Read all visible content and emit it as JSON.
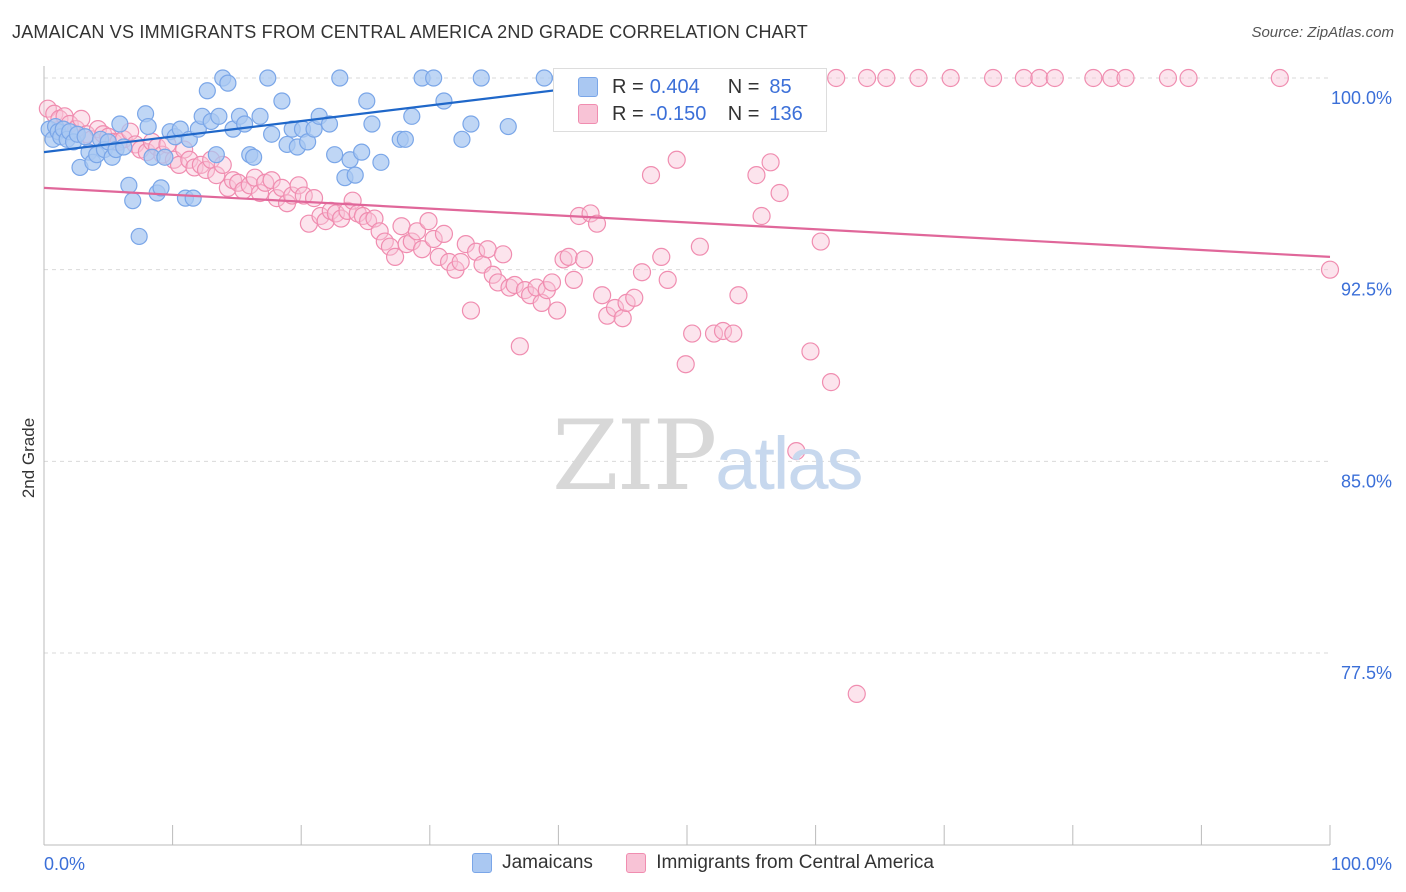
{
  "title": "JAMAICAN VS IMMIGRANTS FROM CENTRAL AMERICA 2ND GRADE CORRELATION CHART",
  "source": "Source: ZipAtlas.com",
  "watermark": {
    "zip": "ZIP",
    "atlas": "atlas"
  },
  "colors": {
    "blue": "#7aa6e8",
    "blue_fill": "#aac8f2",
    "blue_line": "#1f67c9",
    "pink": "#f08db0",
    "pink_fill": "#f8c3d6",
    "pink_line": "#e0679a",
    "axis_label": "#3b6fd8",
    "grid": "#d9d9d9"
  },
  "stats": {
    "rows": [
      {
        "r_label": "R =",
        "r_value": " 0.404",
        "n_label": "N =",
        "n_value": "85"
      },
      {
        "r_label": "R =",
        "r_value": "-0.150",
        "n_label": "N =",
        "n_value": "136"
      }
    ]
  },
  "legend": {
    "series1": "Jamaicans",
    "series2": "Immigrants from Central America"
  },
  "chart_data": {
    "type": "scatter",
    "title": "JAMAICAN VS IMMIGRANTS FROM CENTRAL AMERICA 2ND GRADE CORRELATION CHART",
    "xlabel": "",
    "ylabel": "2nd Grade",
    "xlim": [
      0,
      100
    ],
    "ylim": [
      70.5,
      101.5
    ],
    "x_tick_labels": [
      "0.0%",
      "100.0%"
    ],
    "y_ticks": [
      100.0,
      92.5,
      85.0,
      77.5
    ],
    "y_tick_labels": [
      "100.0%",
      "92.5%",
      "85.0%",
      "77.5%"
    ],
    "grid": true,
    "legend_position": "bottom",
    "series": [
      {
        "name": "Jamaicans",
        "color": "#7aa6e8",
        "trend": {
          "x": [
            0,
            46
          ],
          "y": [
            97.1,
            99.9
          ]
        },
        "points": [
          [
            0.4,
            98.0
          ],
          [
            0.7,
            97.6
          ],
          [
            0.9,
            98.1
          ],
          [
            1.1,
            97.9
          ],
          [
            1.3,
            97.7
          ],
          [
            1.5,
            98.0
          ],
          [
            1.8,
            97.6
          ],
          [
            2.0,
            97.9
          ],
          [
            2.3,
            97.5
          ],
          [
            2.6,
            97.8
          ],
          [
            2.8,
            96.5
          ],
          [
            3.2,
            97.7
          ],
          [
            3.5,
            97.1
          ],
          [
            3.8,
            96.7
          ],
          [
            4.1,
            97.0
          ],
          [
            4.4,
            97.6
          ],
          [
            4.7,
            97.2
          ],
          [
            5.0,
            97.5
          ],
          [
            5.3,
            96.9
          ],
          [
            5.6,
            97.2
          ],
          [
            5.9,
            98.2
          ],
          [
            6.2,
            97.3
          ],
          [
            6.6,
            95.8
          ],
          [
            6.9,
            95.2
          ],
          [
            7.4,
            93.8
          ],
          [
            7.9,
            98.6
          ],
          [
            8.1,
            98.1
          ],
          [
            8.4,
            96.9
          ],
          [
            8.8,
            95.5
          ],
          [
            9.1,
            95.7
          ],
          [
            9.4,
            96.9
          ],
          [
            9.8,
            97.9
          ],
          [
            10.2,
            97.7
          ],
          [
            10.6,
            98.0
          ],
          [
            11.0,
            95.3
          ],
          [
            11.3,
            97.6
          ],
          [
            11.6,
            95.3
          ],
          [
            12.0,
            98.0
          ],
          [
            12.3,
            98.5
          ],
          [
            12.7,
            99.5
          ],
          [
            13.0,
            98.3
          ],
          [
            13.4,
            97.0
          ],
          [
            13.6,
            98.5
          ],
          [
            13.9,
            100.0
          ],
          [
            14.3,
            99.8
          ],
          [
            14.7,
            98.0
          ],
          [
            15.2,
            98.5
          ],
          [
            15.6,
            98.2
          ],
          [
            16.0,
            97.0
          ],
          [
            16.3,
            96.9
          ],
          [
            16.8,
            98.5
          ],
          [
            17.4,
            100.0
          ],
          [
            17.7,
            97.8
          ],
          [
            18.5,
            99.1
          ],
          [
            18.9,
            97.4
          ],
          [
            19.3,
            98.0
          ],
          [
            19.7,
            97.3
          ],
          [
            20.1,
            98.0
          ],
          [
            20.5,
            97.5
          ],
          [
            21.0,
            98.0
          ],
          [
            21.4,
            98.5
          ],
          [
            22.2,
            98.2
          ],
          [
            22.6,
            97.0
          ],
          [
            23.0,
            100.0
          ],
          [
            23.4,
            96.1
          ],
          [
            23.8,
            96.8
          ],
          [
            24.2,
            96.2
          ],
          [
            24.7,
            97.1
          ],
          [
            25.1,
            99.1
          ],
          [
            25.5,
            98.2
          ],
          [
            26.2,
            96.7
          ],
          [
            27.7,
            97.6
          ],
          [
            28.1,
            97.6
          ],
          [
            28.6,
            98.5
          ],
          [
            29.4,
            100.0
          ],
          [
            30.3,
            100.0
          ],
          [
            31.1,
            99.1
          ],
          [
            32.5,
            97.6
          ],
          [
            33.2,
            98.2
          ],
          [
            34.0,
            100.0
          ],
          [
            36.1,
            98.1
          ],
          [
            38.9,
            100.0
          ],
          [
            40.2,
            100.0
          ],
          [
            44.5,
            99.5
          ],
          [
            46.2,
            100.0
          ]
        ]
      },
      {
        "name": "Immigrants from Central America",
        "color": "#f08db0",
        "trend": {
          "x": [
            0,
            100
          ],
          "y": [
            95.7,
            93.0
          ]
        },
        "points": [
          [
            0.3,
            98.8
          ],
          [
            0.8,
            98.6
          ],
          [
            1.2,
            98.4
          ],
          [
            1.6,
            98.5
          ],
          [
            2.0,
            98.2
          ],
          [
            2.5,
            98.0
          ],
          [
            2.9,
            98.4
          ],
          [
            3.3,
            97.8
          ],
          [
            3.7,
            97.6
          ],
          [
            4.2,
            98.0
          ],
          [
            4.6,
            97.8
          ],
          [
            5.0,
            97.7
          ],
          [
            5.4,
            97.5
          ],
          [
            5.8,
            97.5
          ],
          [
            6.2,
            97.6
          ],
          [
            6.7,
            97.9
          ],
          [
            7.1,
            97.4
          ],
          [
            7.5,
            97.2
          ],
          [
            8.0,
            97.1
          ],
          [
            8.4,
            97.5
          ],
          [
            8.8,
            97.3
          ],
          [
            9.2,
            97.0
          ],
          [
            9.6,
            97.4
          ],
          [
            10.1,
            96.8
          ],
          [
            10.5,
            96.6
          ],
          [
            10.9,
            97.2
          ],
          [
            11.3,
            96.8
          ],
          [
            11.7,
            96.5
          ],
          [
            12.2,
            96.6
          ],
          [
            12.6,
            96.4
          ],
          [
            13.0,
            96.8
          ],
          [
            13.4,
            96.2
          ],
          [
            13.9,
            96.6
          ],
          [
            14.3,
            95.7
          ],
          [
            14.7,
            96.0
          ],
          [
            15.1,
            95.9
          ],
          [
            15.5,
            95.6
          ],
          [
            16.0,
            95.8
          ],
          [
            16.4,
            96.1
          ],
          [
            16.8,
            95.5
          ],
          [
            17.2,
            95.9
          ],
          [
            17.7,
            96.0
          ],
          [
            18.1,
            95.3
          ],
          [
            18.5,
            95.7
          ],
          [
            18.9,
            95.1
          ],
          [
            19.3,
            95.4
          ],
          [
            19.8,
            95.8
          ],
          [
            20.2,
            95.4
          ],
          [
            20.6,
            94.3
          ],
          [
            21.0,
            95.3
          ],
          [
            21.5,
            94.6
          ],
          [
            21.9,
            94.4
          ],
          [
            22.3,
            94.8
          ],
          [
            22.7,
            94.7
          ],
          [
            23.1,
            94.5
          ],
          [
            23.6,
            94.8
          ],
          [
            24.0,
            95.2
          ],
          [
            24.4,
            94.7
          ],
          [
            24.8,
            94.6
          ],
          [
            25.2,
            94.4
          ],
          [
            25.7,
            94.5
          ],
          [
            26.1,
            94.0
          ],
          [
            26.5,
            93.6
          ],
          [
            26.9,
            93.4
          ],
          [
            27.3,
            93.0
          ],
          [
            27.8,
            94.2
          ],
          [
            28.2,
            93.5
          ],
          [
            28.6,
            93.6
          ],
          [
            29.0,
            94.0
          ],
          [
            29.4,
            93.3
          ],
          [
            29.9,
            94.4
          ],
          [
            30.3,
            93.7
          ],
          [
            30.7,
            93.0
          ],
          [
            31.1,
            93.9
          ],
          [
            31.5,
            92.8
          ],
          [
            32.0,
            92.5
          ],
          [
            32.4,
            92.8
          ],
          [
            32.8,
            93.5
          ],
          [
            33.2,
            90.9
          ],
          [
            33.6,
            93.2
          ],
          [
            34.1,
            92.7
          ],
          [
            34.5,
            93.3
          ],
          [
            34.9,
            92.3
          ],
          [
            35.3,
            92.0
          ],
          [
            35.7,
            93.1
          ],
          [
            36.2,
            91.8
          ],
          [
            36.6,
            91.9
          ],
          [
            37.0,
            89.5
          ],
          [
            37.4,
            91.7
          ],
          [
            37.8,
            91.5
          ],
          [
            38.3,
            91.8
          ],
          [
            38.7,
            91.2
          ],
          [
            39.1,
            91.7
          ],
          [
            39.5,
            92.0
          ],
          [
            39.9,
            90.9
          ],
          [
            40.4,
            92.9
          ],
          [
            40.8,
            93.0
          ],
          [
            41.2,
            92.1
          ],
          [
            41.6,
            94.6
          ],
          [
            42.0,
            92.9
          ],
          [
            42.5,
            94.7
          ],
          [
            43.0,
            94.3
          ],
          [
            43.4,
            91.5
          ],
          [
            43.8,
            90.7
          ],
          [
            44.4,
            91.0
          ],
          [
            45.0,
            90.6
          ],
          [
            45.3,
            91.2
          ],
          [
            45.9,
            91.4
          ],
          [
            46.5,
            92.4
          ],
          [
            47.2,
            96.2
          ],
          [
            48.0,
            93.0
          ],
          [
            48.5,
            92.1
          ],
          [
            49.2,
            96.8
          ],
          [
            49.9,
            88.8
          ],
          [
            50.4,
            90.0
          ],
          [
            51.0,
            93.4
          ],
          [
            52.1,
            90.0
          ],
          [
            52.8,
            90.1
          ],
          [
            53.6,
            90.0
          ],
          [
            54.0,
            91.5
          ],
          [
            54.6,
            100.0
          ],
          [
            55.4,
            96.2
          ],
          [
            55.8,
            94.6
          ],
          [
            56.5,
            96.7
          ],
          [
            57.2,
            95.5
          ],
          [
            58.5,
            85.4
          ],
          [
            59.6,
            89.3
          ],
          [
            60.4,
            93.6
          ],
          [
            61.2,
            88.1
          ],
          [
            61.6,
            100.0
          ],
          [
            63.2,
            75.9
          ],
          [
            64.0,
            100.0
          ],
          [
            65.5,
            100.0
          ],
          [
            68.0,
            100.0
          ],
          [
            70.5,
            100.0
          ],
          [
            73.8,
            100.0
          ],
          [
            76.2,
            100.0
          ],
          [
            77.4,
            100.0
          ],
          [
            78.6,
            100.0
          ],
          [
            81.6,
            100.0
          ],
          [
            83.0,
            100.0
          ],
          [
            84.1,
            100.0
          ],
          [
            87.4,
            100.0
          ],
          [
            89.0,
            100.0
          ],
          [
            96.1,
            100.0
          ],
          [
            100.0,
            92.5
          ]
        ]
      }
    ]
  }
}
